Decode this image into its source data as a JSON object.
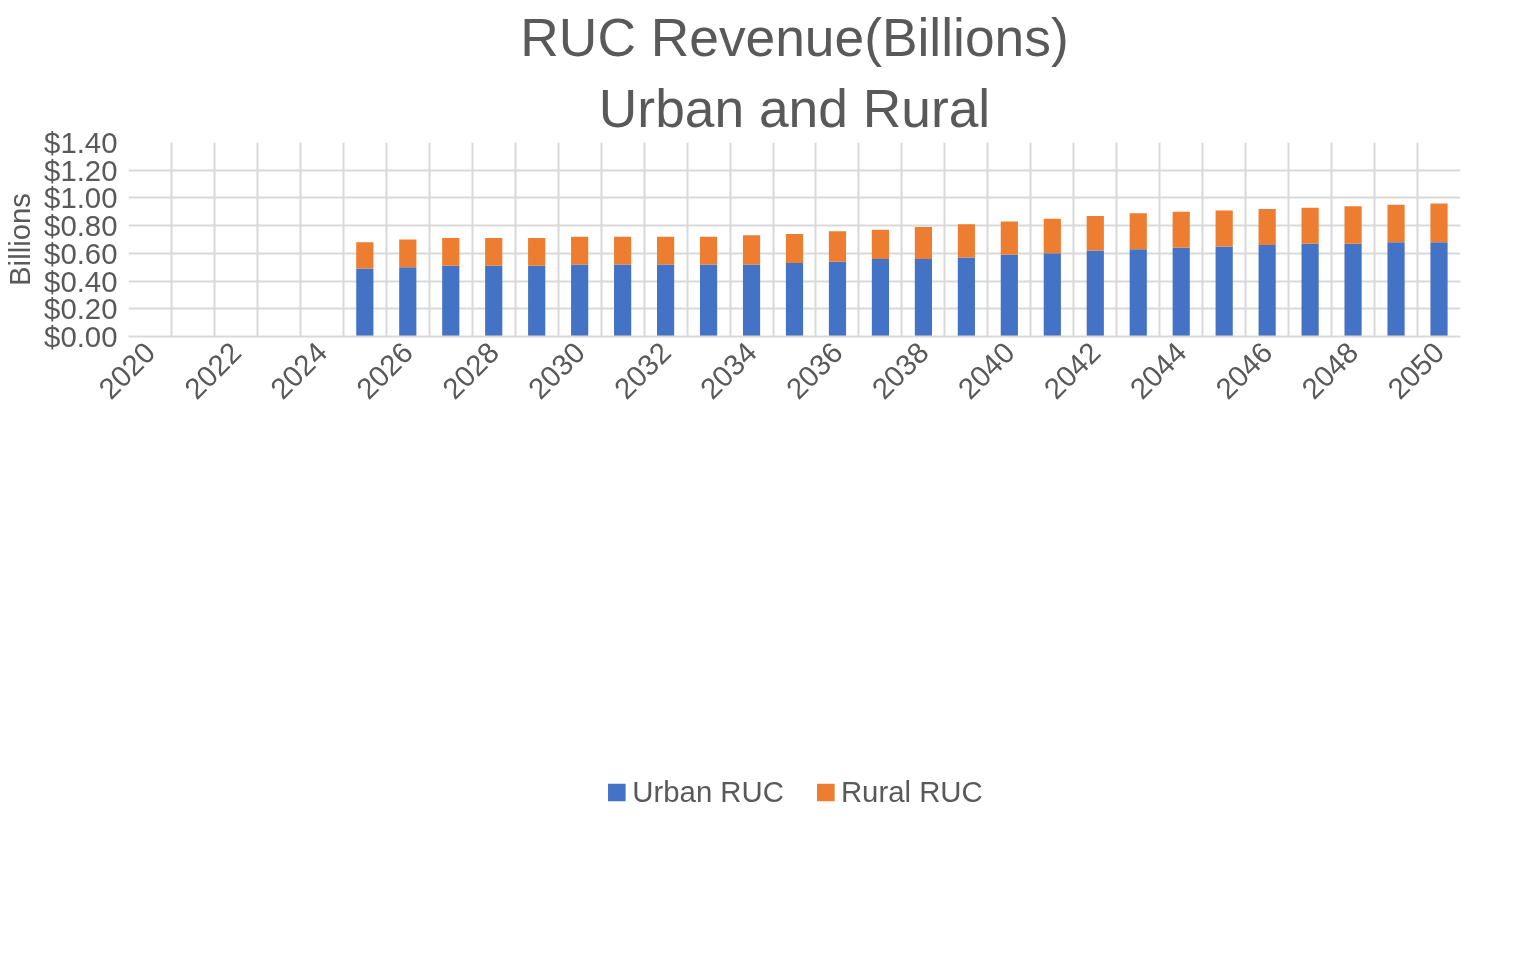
{
  "chart_data": {
    "type": "bar",
    "title": "RUC Revenue(Billions)",
    "subtitle": "Urban and Rural",
    "ylabel": "Billions",
    "categories": [
      "2020",
      null,
      "2022",
      null,
      "2024",
      null,
      "2026",
      null,
      "2028",
      null,
      "2030",
      null,
      "2032",
      null,
      "2034",
      null,
      "2036",
      null,
      "2038",
      null,
      "2040",
      null,
      "2042",
      null,
      "2044",
      null,
      "2046",
      null,
      "2048",
      null,
      "2050"
    ],
    "stacked": true,
    "series": [
      {
        "name": "Urban RUC",
        "color": "#4472c4",
        "values": [
          null,
          null,
          null,
          null,
          null,
          0.49,
          0.5,
          0.51,
          0.51,
          0.51,
          0.52,
          0.52,
          0.52,
          0.52,
          0.52,
          0.53,
          0.54,
          0.56,
          0.56,
          0.57,
          0.59,
          0.6,
          0.62,
          0.63,
          0.64,
          0.65,
          0.66,
          0.67,
          0.67,
          0.68,
          0.68
        ]
      },
      {
        "name": "Rural RUC",
        "color": "#ed7d31",
        "values": [
          null,
          null,
          null,
          null,
          null,
          0.19,
          0.2,
          0.2,
          0.2,
          0.2,
          0.2,
          0.2,
          0.2,
          0.2,
          0.21,
          0.21,
          0.22,
          0.21,
          0.23,
          0.24,
          0.24,
          0.25,
          0.25,
          0.26,
          0.26,
          0.26,
          0.26,
          0.26,
          0.27,
          0.27,
          0.28
        ]
      }
    ],
    "ylim": [
      0,
      1.4
    ],
    "yticks": [
      {
        "value": 0,
        "label": "$0.00"
      },
      {
        "value": 0.2,
        "label": "$0.20"
      },
      {
        "value": 0.4,
        "label": "$0.40"
      },
      {
        "value": 0.6,
        "label": "$0.60"
      },
      {
        "value": 0.8,
        "label": "$0.80"
      },
      {
        "value": 1.0,
        "label": "$1.00"
      },
      {
        "value": 1.2,
        "label": "$1.20"
      },
      {
        "value": 1.4,
        "label": "$1.40"
      }
    ],
    "grid": true,
    "legend": "bottom"
  }
}
